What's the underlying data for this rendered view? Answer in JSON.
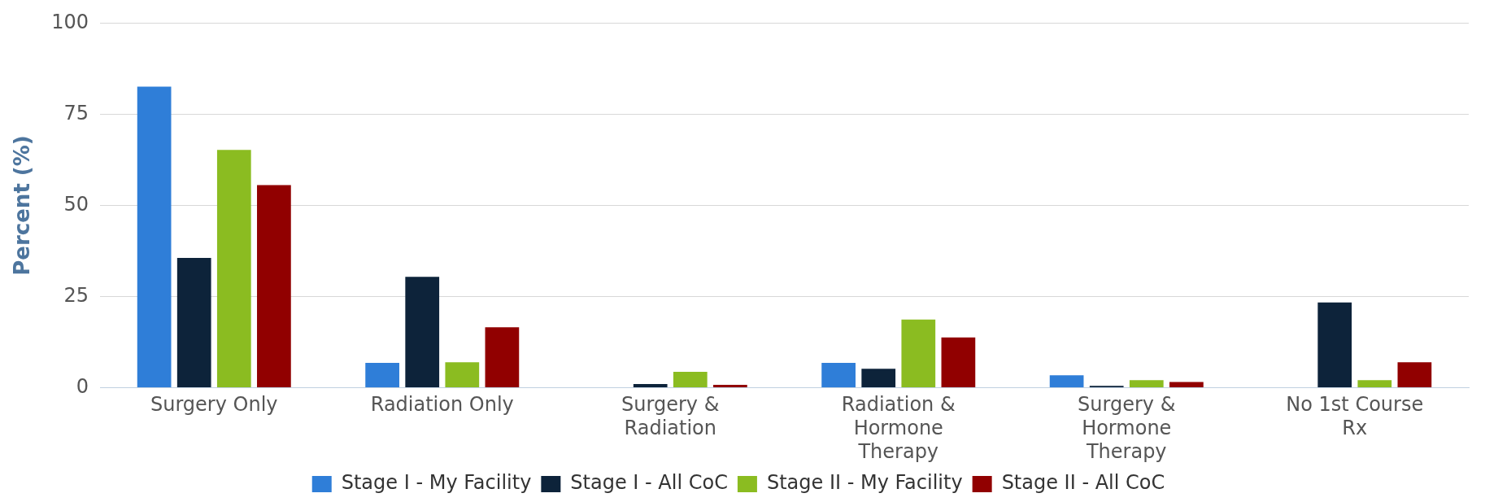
{
  "chart_data": {
    "type": "bar",
    "ylabel": "Percent (%)",
    "categories": [
      "Surgery Only",
      "Radiation Only",
      "Surgery & Radiation",
      "Radiation & Hormone Therapy",
      "Surgery & Hormone Therapy",
      "No 1st Course Rx"
    ],
    "series": [
      {
        "name": "Stage I - My Facility",
        "color": "#2f7ed8",
        "values": [
          82.6,
          6.8,
          0,
          6.8,
          3.4,
          0
        ]
      },
      {
        "name": "Stage I - All CoC",
        "color": "#0d233a",
        "values": [
          35.6,
          30.4,
          1.0,
          5.2,
          0.5,
          23.4
        ]
      },
      {
        "name": "Stage II - My Facility",
        "color": "#8bbc21",
        "values": [
          65.2,
          7.0,
          4.4,
          18.7,
          2.1,
          2.1
        ]
      },
      {
        "name": "Stage II - All CoC",
        "color": "#910000",
        "values": [
          55.6,
          16.6,
          0.8,
          13.8,
          1.6,
          7.0
        ]
      }
    ],
    "ylim": [
      0,
      100
    ],
    "yticks": [
      0,
      25,
      50,
      75,
      100
    ],
    "grid": "y",
    "legend": "bottom"
  }
}
